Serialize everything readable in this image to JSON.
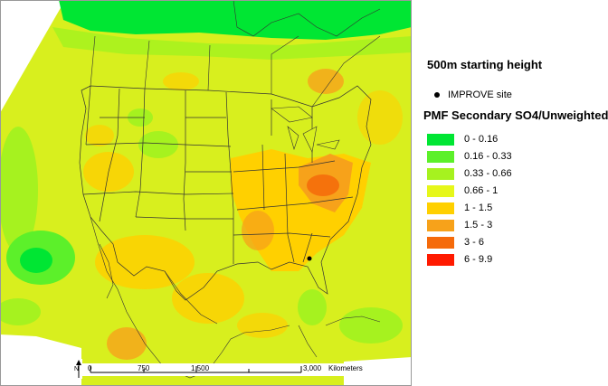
{
  "legend": {
    "starting_height": "500m starting height",
    "site_label": "IMPROVE site",
    "heading": "PMF Secondary SO4/Unweighted",
    "classes": [
      {
        "label": "0 - 0.16",
        "color": "#00e633"
      },
      {
        "label": "0.16 - 0.33",
        "color": "#5cf02a"
      },
      {
        "label": "0.33 - 0.66",
        "color": "#a6f21f"
      },
      {
        "label": "0.66 - 1",
        "color": "#e6f71a"
      },
      {
        "label": "1 - 1.5",
        "color": "#ffd000"
      },
      {
        "label": "1.5 - 3",
        "color": "#f7a21a"
      },
      {
        "label": "3 - 6",
        "color": "#f56a0a"
      },
      {
        "label": "6 - 9.9",
        "color": "#ff1a00"
      }
    ]
  },
  "scalebar": {
    "north": "N",
    "ticks": [
      "0",
      "750",
      "1,500",
      "3,000"
    ],
    "units": "Kilometers"
  }
}
